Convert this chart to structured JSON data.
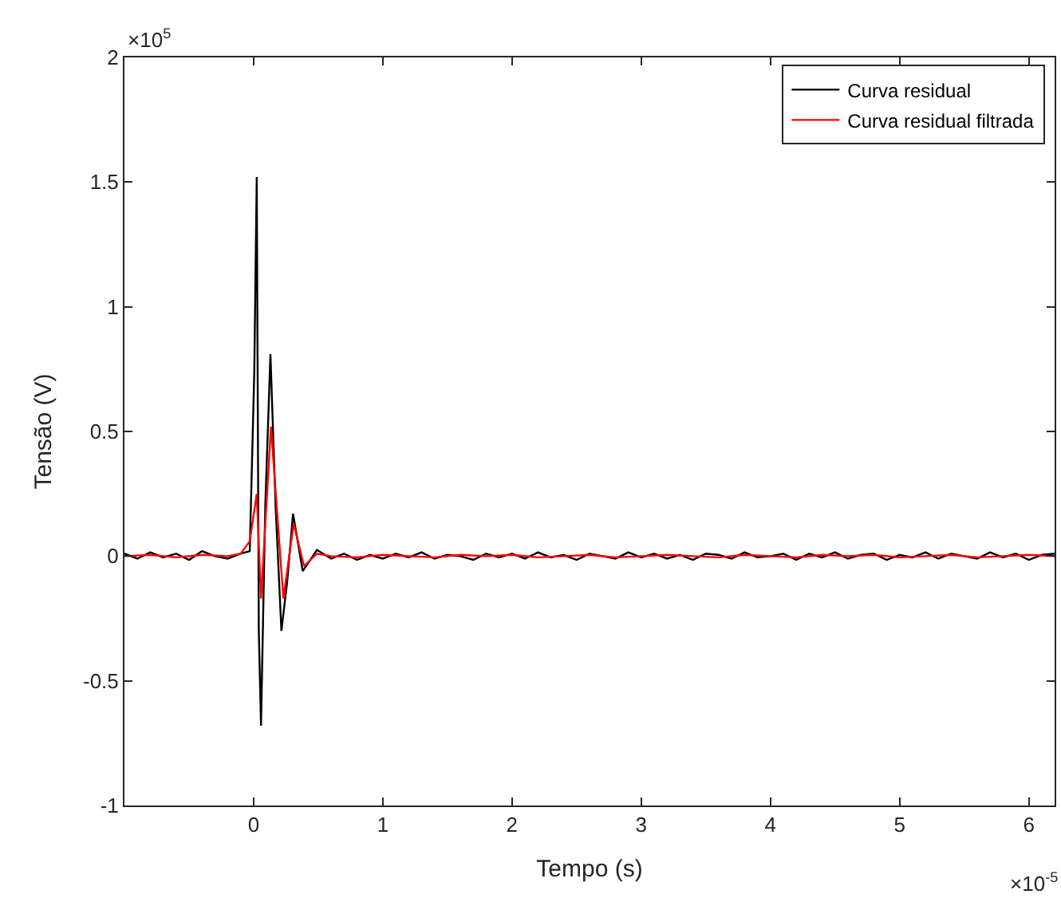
{
  "chart_data": {
    "type": "line",
    "xlabel": "Tempo (s)",
    "ylabel": "Tensão (V)",
    "annotations": [
      "×10$^{5}$",
      "×10$^{-5}$"
    ],
    "xlim": [
      -1,
      6.2
    ],
    "xticks": [
      0,
      1,
      2,
      3,
      4,
      5,
      6
    ],
    "ylim": [
      -1,
      2
    ],
    "yticks": [
      -1,
      -0.5,
      0,
      0.5,
      1,
      1.5,
      2
    ],
    "legend": "top right",
    "marker": "none",
    "line_style": "solid",
    "series": [
      {
        "name": "Curva residual",
        "color": "#000000",
        "x": [
          -1.0,
          -0.9,
          -0.8,
          -0.7,
          -0.6,
          -0.5,
          -0.4,
          -0.3,
          -0.2,
          -0.1,
          -0.03,
          0.005,
          0.024,
          0.04,
          0.057,
          0.09,
          0.13,
          0.17,
          0.215,
          0.26,
          0.305,
          0.38,
          0.49,
          0.6,
          0.7,
          0.8,
          0.9,
          1.0,
          1.1,
          1.2,
          1.3,
          1.4,
          1.5,
          1.6,
          1.7,
          1.8,
          1.9,
          2.0,
          2.1,
          2.2,
          2.3,
          2.4,
          2.5,
          2.6,
          2.7,
          2.8,
          2.9,
          3.0,
          3.1,
          3.2,
          3.3,
          3.4,
          3.5,
          3.6,
          3.7,
          3.8,
          3.9,
          4.0,
          4.1,
          4.2,
          4.3,
          4.4,
          4.5,
          4.6,
          4.7,
          4.8,
          4.9,
          5.0,
          5.1,
          5.2,
          5.3,
          5.4,
          5.5,
          5.6,
          5.7,
          5.8,
          5.9,
          6.0,
          6.1,
          6.2
        ],
        "values": [
          0.01,
          -0.01,
          0.015,
          -0.005,
          0.01,
          -0.015,
          0.02,
          0.0,
          -0.01,
          0.01,
          0.02,
          0.74,
          1.52,
          -0.3,
          -0.68,
          0.2,
          0.81,
          0.2,
          -0.3,
          -0.1,
          0.17,
          -0.06,
          0.025,
          -0.01,
          0.01,
          -0.015,
          0.005,
          -0.01,
          0.01,
          -0.005,
          0.015,
          -0.01,
          0.005,
          0.0,
          -0.015,
          0.01,
          -0.005,
          0.01,
          -0.01,
          0.015,
          -0.005,
          0.005,
          -0.015,
          0.01,
          0.0,
          -0.01,
          0.015,
          -0.005,
          0.01,
          -0.01,
          0.005,
          -0.015,
          0.01,
          0.005,
          -0.01,
          0.015,
          -0.005,
          0.0,
          0.01,
          -0.015,
          0.01,
          -0.005,
          0.015,
          -0.01,
          0.005,
          0.01,
          -0.015,
          0.005,
          -0.005,
          0.015,
          -0.01,
          0.01,
          0.0,
          -0.01,
          0.015,
          -0.005,
          0.01,
          -0.015,
          0.005,
          0.01
        ]
      },
      {
        "name": "Curva residual filtrada",
        "color": "#ff0000",
        "x": [
          -1.0,
          -0.8,
          -0.6,
          -0.4,
          -0.2,
          -0.1,
          -0.03,
          0.024,
          0.057,
          0.134,
          0.23,
          0.31,
          0.39,
          0.49,
          0.6,
          0.8,
          1.0,
          1.2,
          1.4,
          1.6,
          1.8,
          2.0,
          2.2,
          2.4,
          2.6,
          2.8,
          3.0,
          3.2,
          3.4,
          3.6,
          3.8,
          4.0,
          4.2,
          4.4,
          4.6,
          4.8,
          5.0,
          5.2,
          5.4,
          5.6,
          5.8,
          6.0,
          6.2
        ],
        "values": [
          0.0,
          0.005,
          -0.005,
          0.005,
          0.0,
          0.01,
          0.06,
          0.25,
          -0.17,
          0.52,
          -0.17,
          0.13,
          -0.04,
          0.01,
          0.0,
          -0.005,
          0.005,
          0.0,
          -0.005,
          0.005,
          0.0,
          0.005,
          -0.005,
          0.0,
          0.005,
          -0.005,
          0.0,
          0.005,
          0.0,
          -0.005,
          0.005,
          0.0,
          -0.005,
          0.005,
          0.0,
          0.005,
          -0.005,
          0.0,
          0.005,
          -0.005,
          0.0,
          0.005,
          0.0
        ]
      }
    ]
  }
}
